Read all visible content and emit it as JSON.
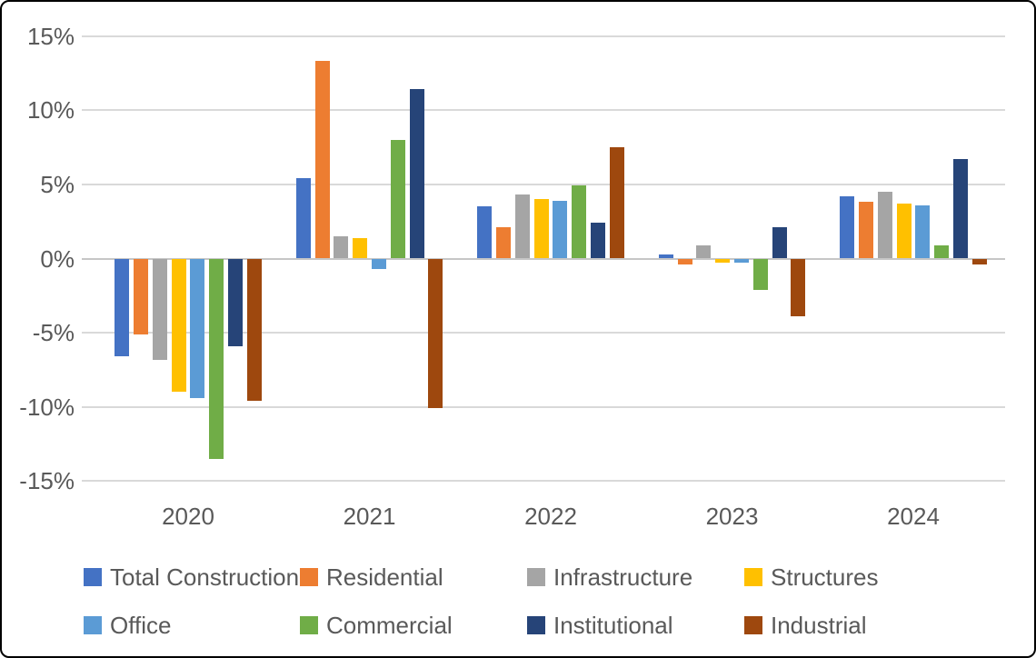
{
  "chart_data": {
    "type": "bar",
    "title": "",
    "xlabel": "",
    "ylabel": "",
    "categories": [
      "2020",
      "2021",
      "2022",
      "2023",
      "2024"
    ],
    "series": [
      {
        "name": "Total Construction",
        "color": "#4472C4",
        "values": [
          -6.6,
          5.4,
          3.5,
          0.3,
          4.2
        ]
      },
      {
        "name": "Residential",
        "color": "#ED7D31",
        "values": [
          -5.1,
          13.3,
          2.1,
          -0.4,
          3.8
        ]
      },
      {
        "name": "Infrastructure",
        "color": "#A5A5A5",
        "values": [
          -6.8,
          1.5,
          4.3,
          0.9,
          4.5
        ]
      },
      {
        "name": "Structures",
        "color": "#FFC000",
        "values": [
          -9.0,
          1.4,
          4.0,
          -0.3,
          3.7
        ]
      },
      {
        "name": "Office",
        "color": "#5B9BD5",
        "values": [
          -9.4,
          -0.7,
          3.9,
          -0.3,
          3.6
        ]
      },
      {
        "name": "Commercial",
        "color": "#70AD47",
        "values": [
          -13.5,
          8.0,
          4.9,
          -2.1,
          0.9
        ]
      },
      {
        "name": "Institutional",
        "color": "#264478",
        "values": [
          -5.9,
          11.4,
          2.4,
          2.1,
          6.7
        ]
      },
      {
        "name": "Industrial",
        "color": "#9E480E",
        "values": [
          -9.6,
          -10.1,
          7.5,
          -3.9,
          -0.4
        ]
      }
    ],
    "y_axis": {
      "min": -15,
      "max": 15,
      "tick_step": 5,
      "ticks": [
        15,
        10,
        5,
        0,
        -5,
        -10,
        -15
      ],
      "tick_labels": [
        "15%",
        "10%",
        "5%",
        "0%",
        "-5%",
        "-10%",
        "-15%"
      ]
    },
    "grid": true,
    "legend_position": "bottom",
    "legend_rows": [
      [
        "Total Construction",
        "Residential",
        "Infrastructure",
        "Structures"
      ],
      [
        "Office",
        "Commercial",
        "Institutional",
        "Industrial"
      ]
    ]
  },
  "colors": {
    "background": "#FFFFFF",
    "border": "#000000",
    "gridline": "#D9D9D9",
    "zero_line": "#C6C6C6",
    "axis_text": "#595959"
  }
}
